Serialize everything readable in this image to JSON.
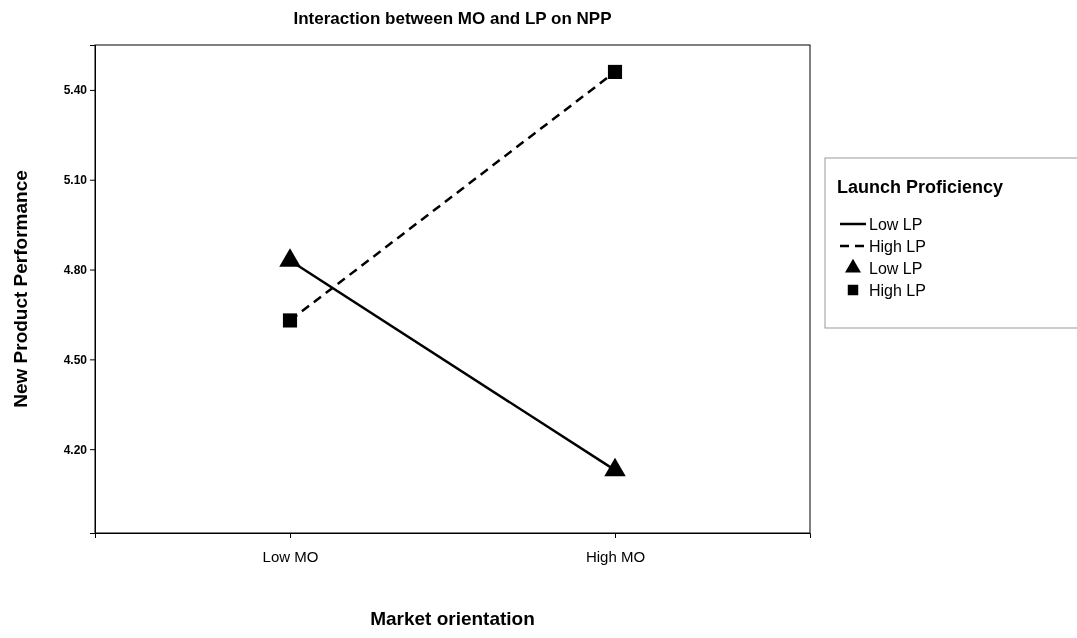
{
  "chart_data": {
    "type": "line",
    "title": "Interaction between MO and LP on NPP",
    "xlabel": "Market orientation",
    "ylabel": "New Product Performance",
    "legend_title": "Launch Proficiency",
    "categories": [
      "Low MO",
      "High MO"
    ],
    "series": [
      {
        "name": "Low LP",
        "type": "line",
        "color": "#000000",
        "line_style": "solid",
        "marker": "none",
        "values": [
          4.83,
          4.13
        ]
      },
      {
        "name": "High LP",
        "type": "line",
        "color": "#000000",
        "line_style": "dashed",
        "marker": "none",
        "values": [
          4.63,
          5.46
        ]
      },
      {
        "name": "Low LP",
        "type": "scatter",
        "color": "#000000",
        "marker": "triangle",
        "values": [
          4.83,
          4.13
        ]
      },
      {
        "name": "High LP",
        "type": "scatter",
        "color": "#000000",
        "marker": "square",
        "values": [
          4.63,
          5.46
        ]
      }
    ],
    "ylim": [
      3.92,
      5.55
    ],
    "yticks": [
      {
        "value": 4.2,
        "label": "4.20"
      },
      {
        "value": 4.5,
        "label": "4.50"
      },
      {
        "value": 4.8,
        "label": "4.80"
      },
      {
        "value": 5.1,
        "label": "5.10"
      },
      {
        "value": 5.4,
        "label": "5.40"
      }
    ],
    "grid": false,
    "legend": "right"
  }
}
